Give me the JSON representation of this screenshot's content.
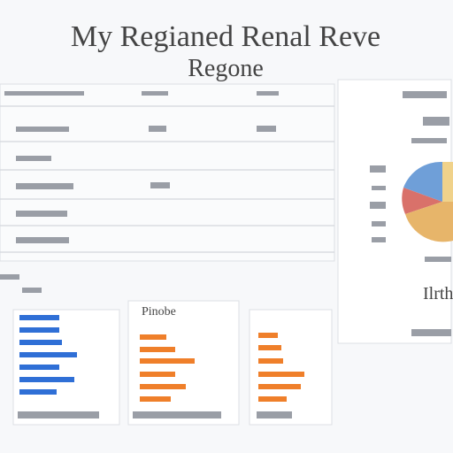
{
  "header": {
    "title": "My Regianed Renal Reve",
    "subtitle": "Regone"
  },
  "panel": {
    "label": "Pinobe"
  },
  "side_card": {
    "label": "Ilrth"
  }
}
